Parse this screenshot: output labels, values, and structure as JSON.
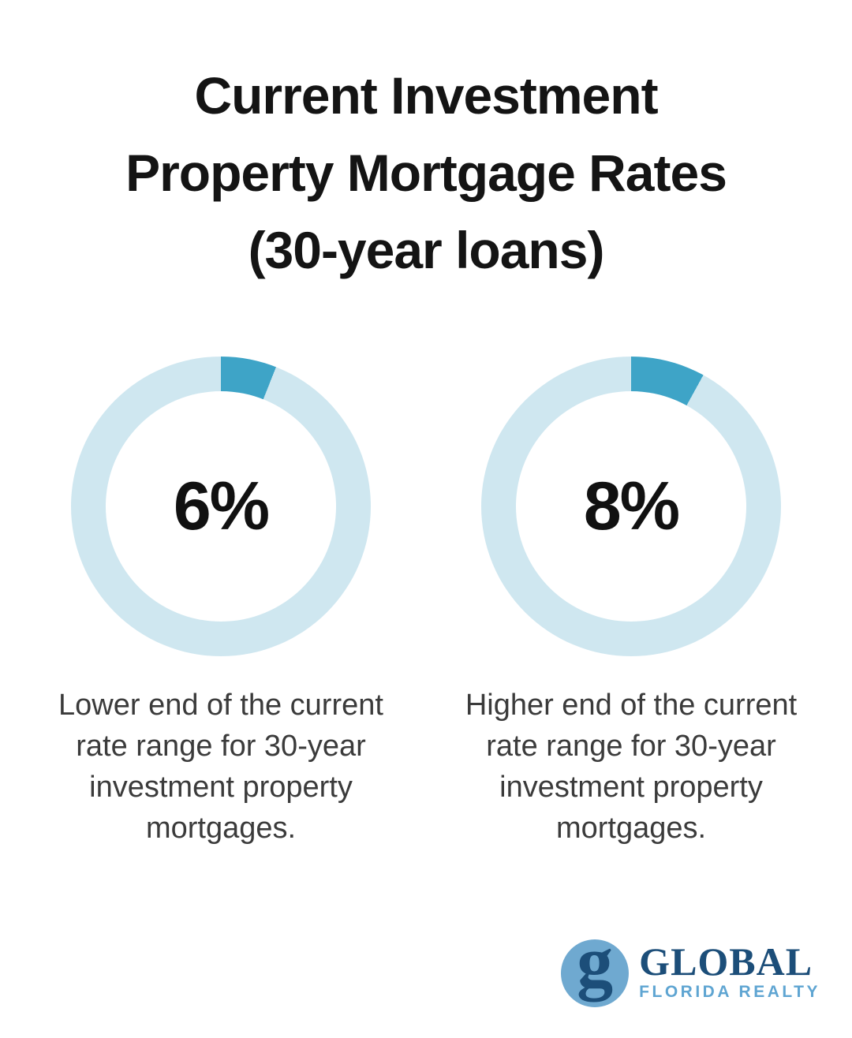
{
  "title": {
    "full": "Current Investment Property Mortgage Rates (30-year loans)",
    "lines": [
      "Current Investment",
      "Property Mortgage Rates",
      "(30-year loans)"
    ]
  },
  "chart_data": [
    {
      "type": "pie",
      "subtype": "donut",
      "center_label": "6%",
      "value": 6,
      "scale_max": 100,
      "start_angle_deg": 0,
      "direction": "clockwise",
      "segment_color": "#3EA4C7",
      "track_color": "#CFE7F0",
      "caption": "Lower end of the current rate range for 30-year investment property mortgages."
    },
    {
      "type": "pie",
      "subtype": "donut",
      "center_label": "8%",
      "value": 8,
      "scale_max": 100,
      "start_angle_deg": 0,
      "direction": "clockwise",
      "segment_color": "#3EA4C7",
      "track_color": "#CFE7F0",
      "caption": "Higher end of the current rate range for 30-year investment property mortgages."
    }
  ],
  "logo": {
    "monogram": "g",
    "brand": "GLOBAL",
    "sub": "FLORIDA REALTY"
  },
  "colors": {
    "background": "#ffffff",
    "title_text": "#141414",
    "value_text": "#111111",
    "caption_text": "#3b3b3b",
    "donut_segment": "#3EA4C7",
    "donut_track": "#CFE7F0",
    "logo_navy": "#1C4E79",
    "logo_blue": "#5FA5D2",
    "logo_circle": "#6FA9D0"
  }
}
